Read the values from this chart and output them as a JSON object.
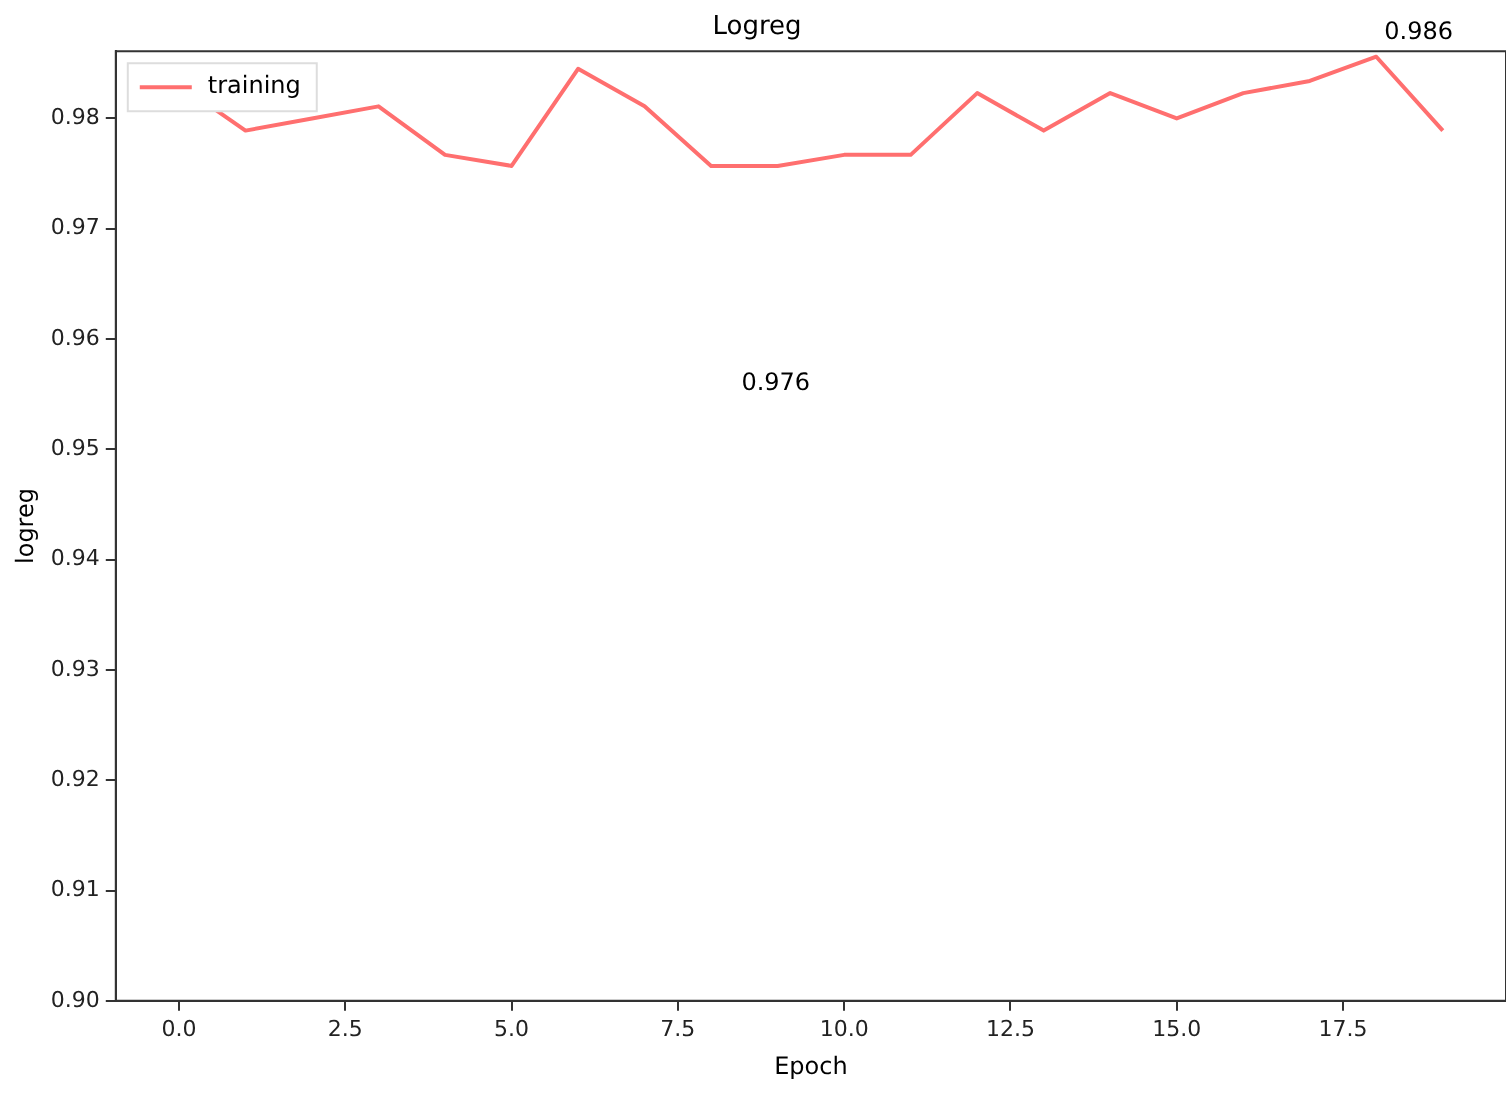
{
  "chart_data": {
    "type": "line",
    "title": "Logreg",
    "xlabel": "Epoch",
    "ylabel": "logreg",
    "x": [
      0,
      1,
      2,
      3,
      4,
      5,
      6,
      7,
      8,
      9,
      10,
      11,
      12,
      13,
      14,
      15,
      16,
      17,
      18,
      19
    ],
    "series": [
      {
        "name": "training",
        "color": "#ff6f6f",
        "values": [
          0.9831,
          0.9789,
          0.98,
          0.9811,
          0.9767,
          0.9757,
          0.9845,
          0.9811,
          0.9757,
          0.9757,
          0.9767,
          0.9767,
          0.9823,
          0.9789,
          0.9823,
          0.98,
          0.9823,
          0.9834,
          0.9856,
          0.9789
        ]
      }
    ],
    "xlim": [
      -0.95,
      19.95
    ],
    "ylim": [
      0.9,
      0.9861
    ],
    "xticks": [
      {
        "value": 0,
        "label": "0.0"
      },
      {
        "value": 2.5,
        "label": "2.5"
      },
      {
        "value": 5,
        "label": "5.0"
      },
      {
        "value": 7.5,
        "label": "7.5"
      },
      {
        "value": 10,
        "label": "10.0"
      },
      {
        "value": 12.5,
        "label": "12.5"
      },
      {
        "value": 15,
        "label": "15.0"
      },
      {
        "value": 17.5,
        "label": "17.5"
      }
    ],
    "yticks": [
      {
        "value": 0.9,
        "label": "0.90"
      },
      {
        "value": 0.91,
        "label": "0.91"
      },
      {
        "value": 0.92,
        "label": "0.92"
      },
      {
        "value": 0.93,
        "label": "0.93"
      },
      {
        "value": 0.94,
        "label": "0.94"
      },
      {
        "value": 0.95,
        "label": "0.95"
      },
      {
        "value": 0.96,
        "label": "0.96"
      },
      {
        "value": 0.97,
        "label": "0.97"
      },
      {
        "value": 0.98,
        "label": "0.98"
      }
    ],
    "annotations": [
      {
        "text": "0.986",
        "x": 18,
        "y": 0.9856
      },
      "0.976"
    ],
    "grid": false,
    "legend": "top left",
    "marker": "none",
    "line_style": "solid"
  }
}
